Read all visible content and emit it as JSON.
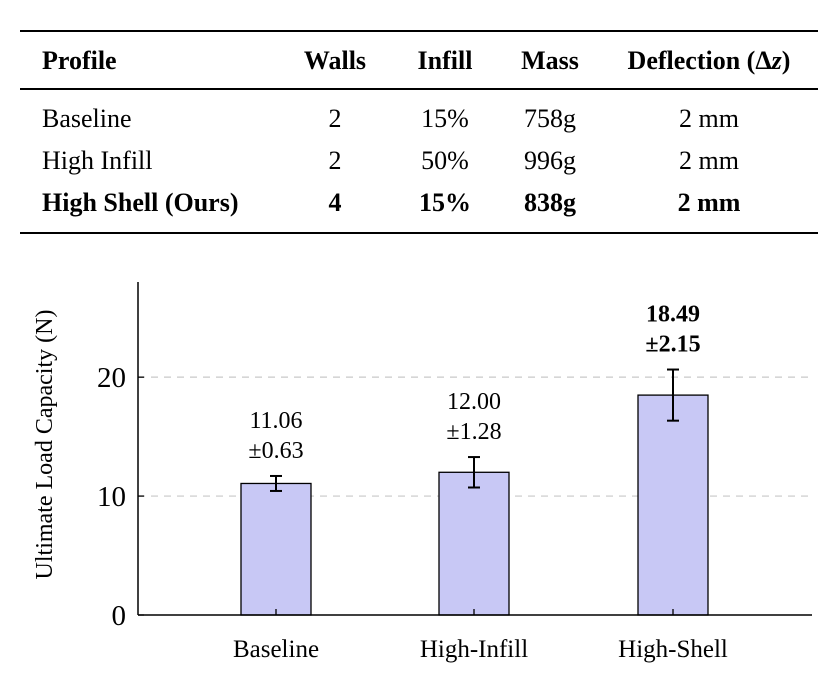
{
  "table": {
    "headers": {
      "profile": "Profile",
      "walls": "Walls",
      "infill": "Infill",
      "mass": "Mass",
      "deflection": "Deflection (Δ",
      "deflection_var": "z",
      "deflection_close": ")"
    },
    "rows": [
      {
        "profile": "Baseline",
        "walls": "2",
        "infill": "15%",
        "mass": "758g",
        "deflection": "2 mm",
        "bold": false
      },
      {
        "profile": "High Infill",
        "walls": "2",
        "infill": "50%",
        "mass": "996g",
        "deflection": "2 mm",
        "bold": false
      },
      {
        "profile": "High Shell (Ours)",
        "walls": "4",
        "infill": "15%",
        "mass": "838g",
        "deflection": "2 mm",
        "bold": true
      }
    ]
  },
  "chart_data": {
    "type": "bar",
    "ylabel": "Ultimate Load Capacity (N)",
    "xlabel": "",
    "categories": [
      "Baseline",
      "High-Infill",
      "High-Shell"
    ],
    "values": [
      11.06,
      12.0,
      18.49
    ],
    "errors": [
      0.63,
      1.28,
      2.15
    ],
    "value_labels": [
      "11.06",
      "12.00",
      "18.49"
    ],
    "error_labels": [
      "±0.63",
      "±1.28",
      "±2.15"
    ],
    "highlight": [
      false,
      false,
      true
    ],
    "ylim": [
      0,
      28
    ],
    "yticks": [
      0,
      10,
      20
    ],
    "grid": "dashed horizontal at ticks",
    "bar_color": "#c8c8f5",
    "bar_edge_color": "#000000"
  }
}
